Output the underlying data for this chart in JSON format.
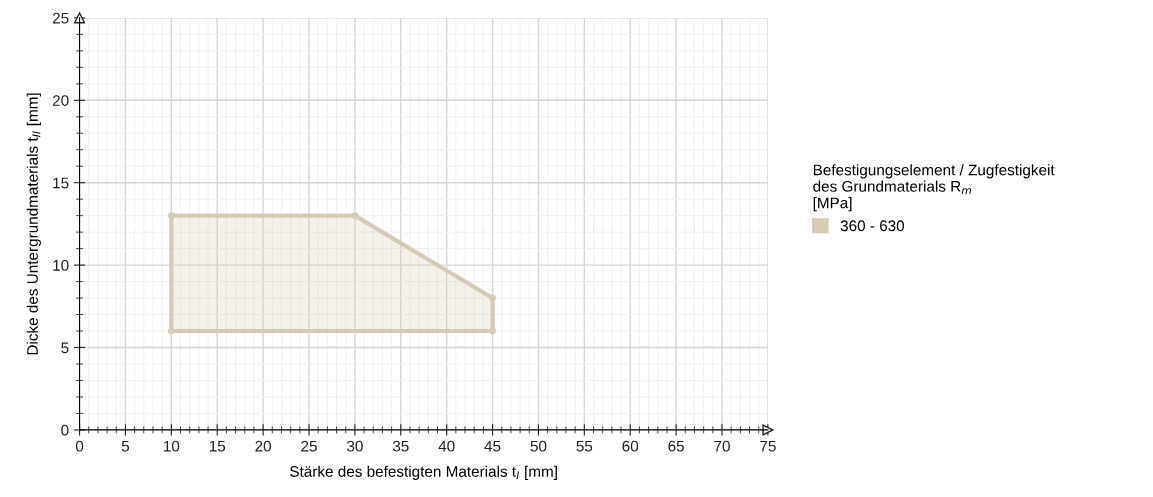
{
  "chart_data": {
    "type": "area",
    "xlabel": "Stärke des befestigten Materials t$_{I}$ [mm]",
    "ylabel": "Dicke des Untergrundmaterials t$_{II}$ [mm]",
    "legend_title": "Befestigungselement / Zugfestigkeit\ndes Grundmaterials R$_{m}$\n[MPa]",
    "series": [
      {
        "name": "360 - 630",
        "color": "#d6cbb4",
        "x": [
          10,
          30,
          45,
          45,
          10
        ],
        "values": [
          13,
          13,
          8,
          6,
          6
        ]
      }
    ],
    "xlim": [
      0,
      75
    ],
    "ylim": [
      0,
      25
    ],
    "xticks": [
      0,
      5,
      10,
      15,
      20,
      25,
      30,
      35,
      40,
      45,
      50,
      55,
      60,
      65,
      70,
      75
    ],
    "yticks": [
      0,
      5,
      10,
      15,
      20,
      25
    ],
    "grid": true,
    "legend": "right",
    "marker": "circle",
    "line_style": "solid"
  }
}
